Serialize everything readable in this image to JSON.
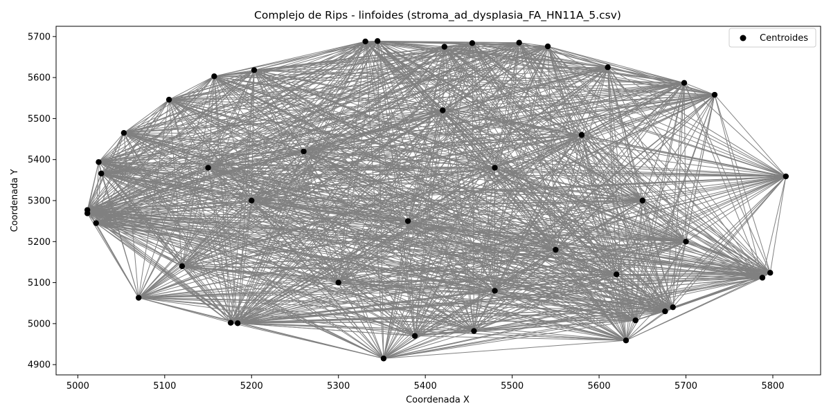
{
  "chart_data": {
    "type": "scatter",
    "title": "Complejo de Rips - linfoides (stroma_ad_dysplasia_FA_HN11A_5.csv)",
    "xlabel": "Coordenada X",
    "ylabel": "Coordenada Y",
    "xlim": [
      4975,
      5855
    ],
    "ylim": [
      4875,
      5725
    ],
    "xticks": [
      5000,
      5100,
      5200,
      5300,
      5400,
      5500,
      5600,
      5700,
      5800
    ],
    "yticks": [
      4900,
      5000,
      5100,
      5200,
      5300,
      5400,
      5500,
      5600,
      5700
    ],
    "grid": false,
    "legend": {
      "position": "top-right",
      "entries": [
        "Centroides"
      ]
    },
    "colors": {
      "points": "#000000",
      "edges": "#808080"
    },
    "series": [
      {
        "name": "Centroides",
        "points": [
          [
            5011,
            5277
          ],
          [
            5011,
            5269
          ],
          [
            5021,
            5245
          ],
          [
            5024,
            5394
          ],
          [
            5027,
            5366
          ],
          [
            5053,
            5465
          ],
          [
            5070,
            5063
          ],
          [
            5105,
            5546
          ],
          [
            5157,
            5603
          ],
          [
            5176,
            5002
          ],
          [
            5184,
            5001
          ],
          [
            5203,
            5618
          ],
          [
            5331,
            5688
          ],
          [
            5345,
            5689
          ],
          [
            5352,
            4915
          ],
          [
            5388,
            4970
          ],
          [
            5422,
            5675
          ],
          [
            5454,
            5684
          ],
          [
            5456,
            4982
          ],
          [
            5508,
            5685
          ],
          [
            5541,
            5676
          ],
          [
            5610,
            5625
          ],
          [
            5631,
            4959
          ],
          [
            5642,
            5008
          ],
          [
            5676,
            5030
          ],
          [
            5685,
            5040
          ],
          [
            5698,
            5587
          ],
          [
            5733,
            5558
          ],
          [
            5788,
            5112
          ],
          [
            5797,
            5124
          ],
          [
            5815,
            5359
          ],
          [
            5120,
            5140
          ],
          [
            5260,
            5420
          ],
          [
            5380,
            5250
          ],
          [
            5480,
            5380
          ],
          [
            5550,
            5180
          ],
          [
            5650,
            5300
          ],
          [
            5300,
            5100
          ],
          [
            5420,
            5520
          ],
          [
            5200,
            5300
          ],
          [
            5700,
            5200
          ],
          [
            5580,
            5460
          ],
          [
            5150,
            5380
          ],
          [
            5480,
            5080
          ],
          [
            5620,
            5120
          ]
        ]
      }
    ]
  }
}
